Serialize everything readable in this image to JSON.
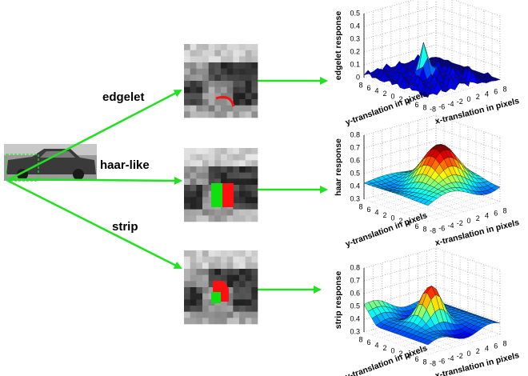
{
  "branches": [
    {
      "label": "edgelet"
    },
    {
      "label": "haar-like"
    },
    {
      "label": "strip"
    }
  ],
  "plots": [
    {
      "z_label": "edgelet response",
      "zticks": [
        0,
        0.1,
        0.2,
        0.3,
        0.4,
        0.5
      ],
      "y_label": "y-translation in pixels",
      "yticks": [
        "8",
        "6",
        "4",
        "2",
        "0",
        "2",
        "4",
        "6",
        "8"
      ],
      "x_label": "x-translation in pixels",
      "xticks": [
        "-8",
        "-6",
        "-4",
        "-2",
        "0",
        "2",
        "4",
        "6",
        "8"
      ]
    },
    {
      "z_label": "haar response",
      "zticks": [
        0.3,
        0.4,
        0.5,
        0.6,
        0.7,
        0.8
      ],
      "y_label": "y-translation in pixels",
      "yticks": [
        "8",
        "6",
        "4",
        "2",
        "0",
        "2",
        "4",
        "6",
        "8"
      ],
      "x_label": "x-translation in pixels",
      "xticks": [
        "-8",
        "-6",
        "-4",
        "-2",
        "0",
        "2",
        "4",
        "6",
        "8"
      ]
    },
    {
      "z_label": "strip response",
      "zticks": [
        0.3,
        0.4,
        0.5,
        0.6,
        0.7,
        0.8
      ],
      "y_label": "y-translation in pixels",
      "yticks": [
        "8",
        "6",
        "4",
        "2",
        "0",
        "2",
        "4",
        "6",
        "8"
      ],
      "x_label": "x-translation in pixels",
      "xticks": [
        "-8",
        "-6",
        "-4",
        "-2",
        "0",
        "2",
        "4",
        "6",
        "8"
      ]
    }
  ]
}
